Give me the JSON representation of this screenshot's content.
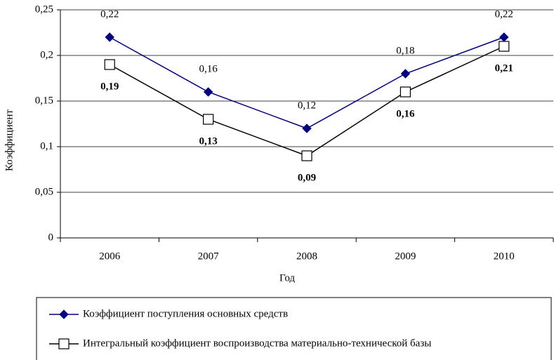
{
  "chart_data": {
    "type": "line",
    "categories": [
      "2006",
      "2007",
      "2008",
      "2009",
      "2010"
    ],
    "series": [
      {
        "name": "Коэффициент поступления основных средств",
        "color": "#000080",
        "marker": "diamond",
        "values": [
          0.22,
          0.16,
          0.12,
          0.18,
          0.22
        ],
        "value_labels": [
          "0,22",
          "0,16",
          "0,12",
          "0,18",
          "0,22"
        ]
      },
      {
        "name": "Интегральный коэффициент воспроизводства материально-технической базы",
        "color": "#000000",
        "marker": "square",
        "values": [
          0.19,
          0.13,
          0.09,
          0.16,
          0.21
        ],
        "value_labels": [
          "0,19",
          "0,13",
          "0,09",
          "0,16",
          "0,21"
        ]
      }
    ],
    "ylim": [
      0,
      0.25
    ],
    "yticks": [
      0,
      {
        "value": 0.05,
        "label": "0,05"
      },
      {
        "value": 0.1,
        "label": "0,1"
      },
      {
        "value": 0.15,
        "label": "0,15"
      },
      {
        "value": 0.2,
        "label": "0,2"
      },
      {
        "value": 0.25,
        "label": "0,25"
      }
    ],
    "ylabel": "Коэффициент",
    "xlabel": "Год",
    "grid": true,
    "legend": "bottom"
  }
}
